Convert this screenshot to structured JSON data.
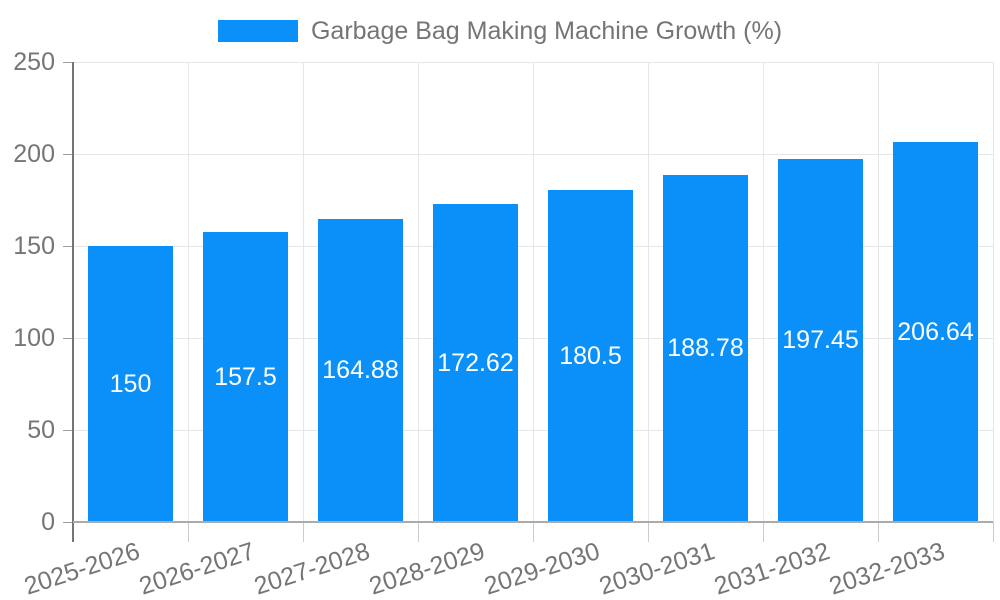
{
  "chart_data": {
    "type": "bar",
    "title": "Garbage Bag Making Machine Growth (%)",
    "categories": [
      "2025-2026",
      "2026-2027",
      "2027-2028",
      "2028-2029",
      "2029-2030",
      "2030-2031",
      "2031-2032",
      "2032-2033"
    ],
    "values": [
      150,
      157.5,
      164.88,
      172.62,
      180.5,
      188.78,
      197.45,
      206.64
    ],
    "value_labels": [
      "150",
      "157.5",
      "164.88",
      "172.62",
      "180.5",
      "188.78",
      "197.45",
      "206.64"
    ],
    "xlabel": "",
    "ylabel": "",
    "ylim": [
      0,
      250
    ],
    "yticks": [
      0,
      50,
      100,
      150,
      200,
      250
    ],
    "grid": "both",
    "legend_position": "top-center",
    "x_label_rotation_deg": -18,
    "colors": {
      "bar": "#0a90f8",
      "value_label": "#ffffff",
      "axis_text": "#757575",
      "gridline": "#e6e6e6",
      "axis_line": "#757575",
      "baseline": "#ababab"
    }
  }
}
